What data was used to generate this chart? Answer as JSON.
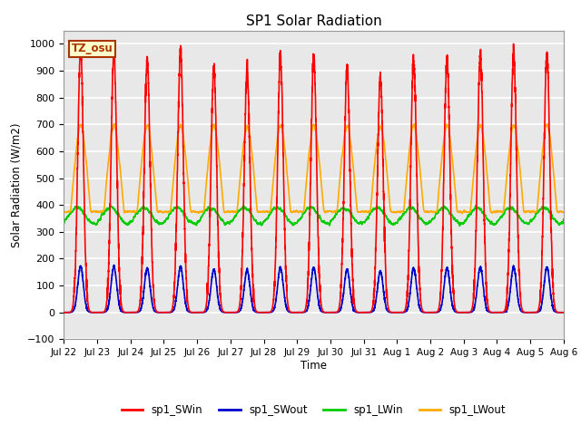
{
  "title": "SP1 Solar Radiation",
  "ylabel": "Solar Radiation (W/m2)",
  "xlabel": "Time",
  "ylim": [
    -100,
    1050
  ],
  "bg_color": "#e8e8e8",
  "grid_color": "white",
  "colors": {
    "SWin": "#ff0000",
    "SWout": "#0000cc",
    "LWin": "#00cc00",
    "LWout": "#ffaa00"
  },
  "legend_labels": [
    "sp1_SWin",
    "sp1_SWout",
    "sp1_LWin",
    "sp1_LWout"
  ],
  "annotation_text": "TZ_osu",
  "annotation_color": "#aa3300",
  "annotation_bg": "#ffffcc",
  "tick_labels": [
    "Jul 22",
    "Jul 23",
    "Jul 24",
    "Jul 25",
    "Jul 26",
    "Jul 27",
    "Jul 28",
    "Jul 29",
    "Jul 30",
    "Jul 31",
    "Aug 1",
    "Aug 2",
    "Aug 3",
    "Aug 4",
    "Aug 5",
    "Aug 6"
  ],
  "n_days": 15,
  "samples_per_day": 288
}
